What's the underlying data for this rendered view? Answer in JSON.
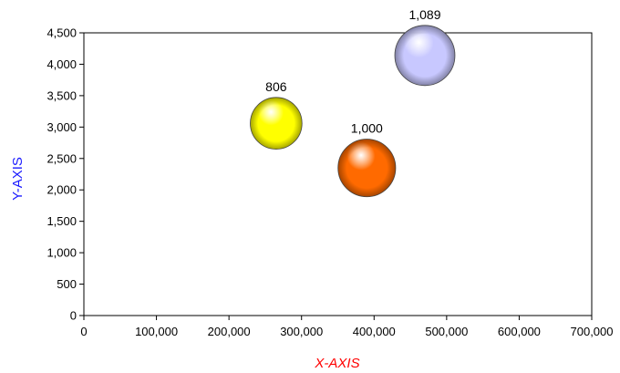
{
  "chart_data": {
    "type": "bubble",
    "title": "",
    "xlabel": "X-AXIS",
    "ylabel": "Y-AXIS",
    "xlim": [
      0,
      700000
    ],
    "ylim": [
      0,
      4500
    ],
    "x_ticks": [
      0,
      100000,
      200000,
      300000,
      400000,
      500000,
      600000,
      700000
    ],
    "y_ticks": [
      0,
      500,
      1000,
      1500,
      2000,
      2500,
      3000,
      3500,
      4000,
      4500
    ],
    "x_tick_labels": [
      "0",
      "100,000",
      "200,000",
      "300,000",
      "400,000",
      "500,000",
      "600,000",
      "700,000"
    ],
    "y_tick_labels": [
      "0",
      "500",
      "1,000",
      "1,500",
      "2,000",
      "2,500",
      "3,000",
      "3,500",
      "4,000",
      "4,500"
    ],
    "grid": false,
    "colors": {
      "xlabel": "#ff0000",
      "ylabel": "#1a1aff",
      "plot_border": "#000000"
    },
    "points": [
      {
        "x": 265000,
        "y": 3060,
        "size": 806,
        "label": "806",
        "color": "#ffff00"
      },
      {
        "x": 390000,
        "y": 2350,
        "size": 1000,
        "label": "1,000",
        "color": "#ff6a00"
      },
      {
        "x": 470000,
        "y": 4140,
        "size": 1089,
        "label": "1,089",
        "color": "#c8c8ff"
      }
    ]
  }
}
